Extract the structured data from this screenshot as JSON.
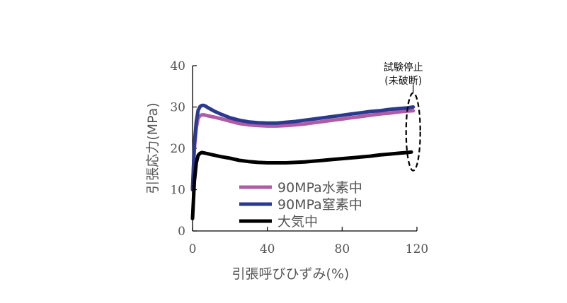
{
  "chart_data": {
    "type": "line",
    "title": "",
    "xlabel": "引張呼びひずみ(%)",
    "ylabel": "引張応力(MPa)",
    "xlim": [
      0,
      120
    ],
    "ylim": [
      0,
      40
    ],
    "xticks": [
      "0",
      "40",
      "80",
      "120"
    ],
    "yticks": [
      "0",
      "10",
      "20",
      "30",
      "40"
    ],
    "legend_position": "bottom-left",
    "grid": false,
    "series": [
      {
        "name": "90MPa水素中",
        "color": "#B05BA5",
        "x": [
          0,
          1,
          2,
          3,
          4,
          5,
          6,
          7,
          8,
          10,
          12,
          15,
          20,
          25,
          30,
          35,
          40,
          45,
          50,
          55,
          60,
          65,
          70,
          75,
          80,
          85,
          90,
          95,
          100,
          105,
          110,
          115,
          118
        ],
        "y": [
          10,
          20,
          25,
          27.3,
          27.9,
          28.1,
          28.1,
          28.0,
          27.9,
          27.7,
          27.5,
          27.2,
          26.6,
          26.0,
          25.7,
          25.5,
          25.4,
          25.4,
          25.5,
          25.7,
          25.9,
          26.2,
          26.5,
          26.8,
          27.1,
          27.4,
          27.7,
          28.0,
          28.3,
          28.5,
          28.8,
          29.0,
          29.1
        ]
      },
      {
        "name": "90MPa窒素中",
        "color": "#2B3990",
        "x": [
          0,
          1,
          2,
          3,
          4,
          5,
          6,
          7,
          8,
          10,
          12,
          15,
          20,
          25,
          30,
          35,
          40,
          45,
          50,
          55,
          60,
          65,
          70,
          75,
          80,
          85,
          90,
          95,
          100,
          105,
          110,
          115,
          118
        ],
        "y": [
          10,
          21,
          26.5,
          29.2,
          30.1,
          30.4,
          30.4,
          30.2,
          29.9,
          29.4,
          28.9,
          28.3,
          27.4,
          26.8,
          26.4,
          26.2,
          26.1,
          26.1,
          26.3,
          26.5,
          26.8,
          27.1,
          27.4,
          27.7,
          28.0,
          28.3,
          28.6,
          28.9,
          29.1,
          29.4,
          29.6,
          29.8,
          30.0
        ]
      },
      {
        "name": "大気中",
        "color": "#000000",
        "x": [
          0,
          1,
          2,
          3,
          4,
          5,
          6,
          7,
          8,
          10,
          12,
          15,
          20,
          25,
          30,
          35,
          40,
          45,
          50,
          55,
          60,
          65,
          70,
          75,
          80,
          85,
          90,
          95,
          100,
          105,
          110,
          115,
          117
        ],
        "y": [
          3,
          12,
          16.5,
          18.3,
          18.8,
          19.0,
          18.9,
          18.8,
          18.7,
          18.5,
          18.3,
          18.0,
          17.6,
          17.1,
          16.8,
          16.6,
          16.5,
          16.5,
          16.5,
          16.6,
          16.7,
          16.9,
          17.1,
          17.3,
          17.5,
          17.7,
          17.9,
          18.1,
          18.4,
          18.6,
          18.8,
          19.0,
          19.1
        ]
      }
    ],
    "annotations": [
      {
        "text_line1": "試験停止",
        "text_line2": "(未破断)",
        "target_x": 118,
        "target_y_range": [
          17,
          31
        ]
      }
    ]
  }
}
